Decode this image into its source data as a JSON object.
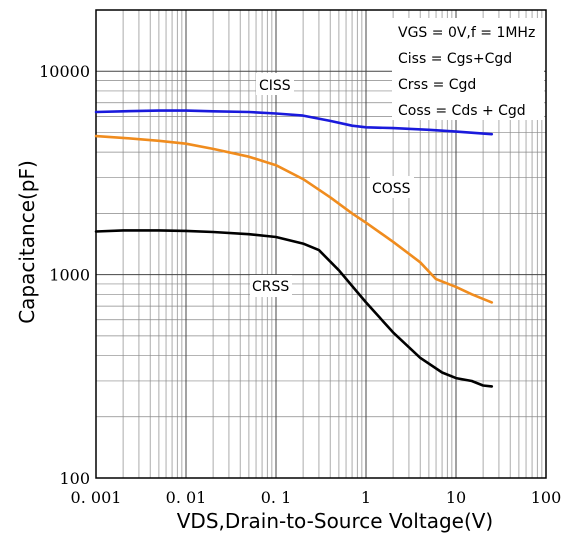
{
  "chart_data": {
    "type": "line",
    "title": "",
    "xlabel": "VDS,Drain-to-Source Voltage(V)",
    "ylabel": "Capacitance(pF)",
    "x_scale": "log",
    "y_scale": "log",
    "xlim": [
      0.001,
      100
    ],
    "ylim": [
      100,
      20000
    ],
    "grid": true,
    "x_ticks": [
      {
        "value": 0.001,
        "label": "0. 001"
      },
      {
        "value": 0.01,
        "label": "0. 01"
      },
      {
        "value": 0.1,
        "label": "0. 1"
      },
      {
        "value": 1,
        "label": "1"
      },
      {
        "value": 10,
        "label": "10"
      },
      {
        "value": 100,
        "label": "100"
      }
    ],
    "y_ticks": [
      {
        "value": 100,
        "label": "100"
      },
      {
        "value": 1000,
        "label": "1000"
      },
      {
        "value": 10000,
        "label": "10000"
      }
    ],
    "annotations": [
      "VGS  = 0V,f = 1MHz",
      "Ciss = Cgs+Cgd",
      "Crss = Cgd",
      "Coss = Cds + Cgd"
    ],
    "series": [
      {
        "name": "CISS",
        "color": "#1a1adc",
        "x": [
          0.001,
          0.002,
          0.005,
          0.01,
          0.02,
          0.05,
          0.1,
          0.2,
          0.4,
          0.7,
          1,
          2,
          5,
          10,
          25
        ],
        "y": [
          6300,
          6350,
          6400,
          6400,
          6350,
          6300,
          6200,
          6050,
          5700,
          5400,
          5300,
          5250,
          5150,
          5050,
          4900
        ]
      },
      {
        "name": "COSS",
        "color": "#f08c1e",
        "x": [
          0.001,
          0.002,
          0.005,
          0.01,
          0.02,
          0.05,
          0.1,
          0.2,
          0.4,
          0.7,
          1,
          2,
          4,
          6,
          10,
          15,
          20,
          25
        ],
        "y": [
          4800,
          4700,
          4550,
          4400,
          4150,
          3800,
          3450,
          2950,
          2400,
          2000,
          1800,
          1450,
          1150,
          950,
          870,
          800,
          760,
          730
        ]
      },
      {
        "name": "CRSS",
        "color": "#000000",
        "x": [
          0.001,
          0.002,
          0.005,
          0.01,
          0.02,
          0.05,
          0.1,
          0.2,
          0.3,
          0.5,
          0.8,
          1,
          2,
          4,
          7,
          10,
          15,
          20,
          25
        ],
        "y": [
          1630,
          1650,
          1650,
          1640,
          1620,
          1580,
          1530,
          1420,
          1320,
          1050,
          820,
          730,
          520,
          390,
          330,
          310,
          300,
          285,
          282
        ]
      }
    ]
  }
}
